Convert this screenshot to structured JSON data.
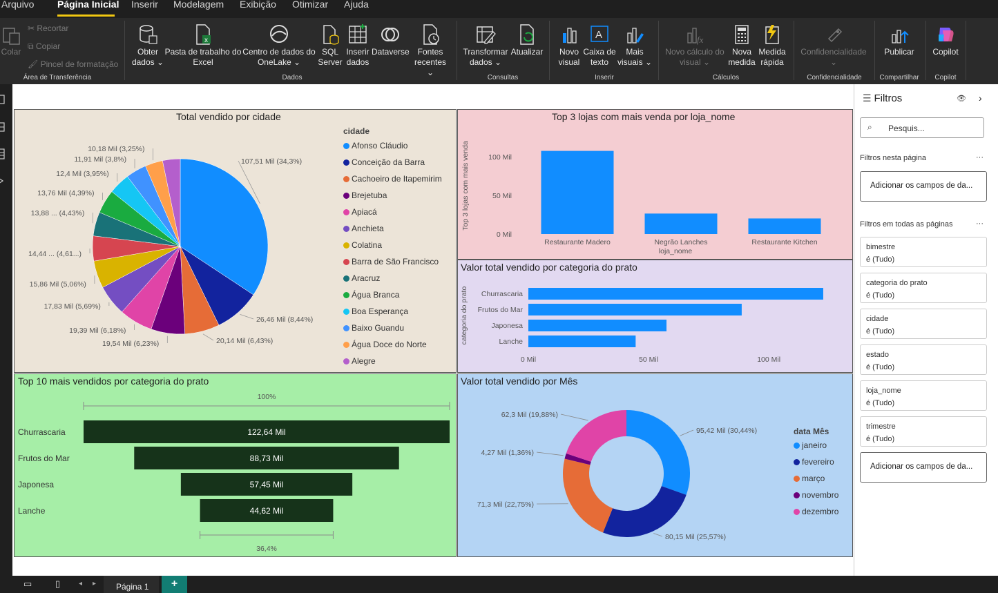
{
  "menu": {
    "items": [
      "Arquivo",
      "Página Inicial",
      "Inserir",
      "Modelagem",
      "Exibição",
      "Otimizar",
      "Ajuda"
    ]
  },
  "ribbon": {
    "clipboard": {
      "paste": "Colar",
      "cut": "Recortar",
      "copy": "Copiar",
      "format_painter": "Pincel de formatação",
      "group": "Área de Transferência"
    },
    "data": {
      "get_data": [
        "Obter",
        "dados"
      ],
      "excel": [
        "Pasta de trabalho do",
        "Excel"
      ],
      "onelake": [
        "Centro de dados do",
        "OneLake"
      ],
      "sql": [
        "SQL",
        "Server"
      ],
      "enter": [
        "Inserir",
        "dados"
      ],
      "dataverse": [
        "Dataverse",
        ""
      ],
      "recent": [
        "Fontes",
        "recentes"
      ],
      "group": "Dados"
    },
    "queries": {
      "transform": [
        "Transformar",
        "dados"
      ],
      "refresh": [
        "Atualizar",
        ""
      ],
      "group": "Consultas"
    },
    "insert": {
      "new_visual": [
        "Novo",
        "visual"
      ],
      "text_box": [
        "Caixa de",
        "texto"
      ],
      "more_visuals": [
        "Mais",
        "visuais"
      ],
      "group": "Inserir"
    },
    "calc": {
      "new_calc": [
        "Novo cálculo do",
        "visual"
      ],
      "new_measure": [
        "Nova",
        "medida"
      ],
      "quick_measure": [
        "Medida",
        "rápida"
      ],
      "group": "Cálculos"
    },
    "sensitivity": {
      "label": "Confidencialidade",
      "group": "Confidencialidade"
    },
    "share": {
      "publish": "Publicar",
      "group": "Compartilhar"
    },
    "copilot": {
      "label": "Copilot",
      "group": "Copilot"
    }
  },
  "colors": {
    "pie_bg": "#ece4d8",
    "bar_bg": "#f4cdd2",
    "hbar_bg": "#e2d9f1",
    "funnel_bg": "#a6eea7",
    "donut_bg": "#b4d4f4",
    "bar": "#118dff",
    "funnel_bar": "#16331a"
  },
  "pie": {
    "title": "Total vendido por cidade",
    "legend_title": "cidade",
    "slices": [
      {
        "city": "Afonso Cláudio",
        "value": 107.51,
        "color": "#118dff",
        "label": "107,51 Mil (34,3%)"
      },
      {
        "city": "Conceição da Barra",
        "value": 26.46,
        "color": "#12239e",
        "label": "26,46 Mil (8,44%)"
      },
      {
        "city": "Cachoeiro de Itapemirim",
        "value": 20.14,
        "color": "#e66c37",
        "label": "20,14 Mil (6,43%)"
      },
      {
        "city": "Brejetuba",
        "value": 19.54,
        "color": "#6b007b",
        "label": "19,54 Mil (6,23%)"
      },
      {
        "city": "Apiacá",
        "value": 19.39,
        "color": "#e044a7",
        "label": "19,39 Mil (6,18%)"
      },
      {
        "city": "Anchieta",
        "value": 17.83,
        "color": "#744ec2",
        "label": "17,83 Mil (5,69%)"
      },
      {
        "city": "Colatina",
        "value": 15.86,
        "color": "#d9b300",
        "label": "15,86 Mil (5,06%)"
      },
      {
        "city": "Barra de São Francisco",
        "value": 14.44,
        "color": "#d64550",
        "label": "14,44 ... (4,61...)"
      },
      {
        "city": "Aracruz",
        "value": 13.88,
        "color": "#197278",
        "label": "13,88 ... (4,43%)"
      },
      {
        "city": "Água Branca",
        "value": 13.76,
        "color": "#1aab40",
        "label": "13,76 Mil (4,39%)"
      },
      {
        "city": "Boa Esperança",
        "value": 12.4,
        "color": "#15c6f4",
        "label": "12,4 Mil (3,95%)"
      },
      {
        "city": "Baixo Guandu",
        "value": 11.91,
        "color": "#4092ff",
        "label": "11,91 Mil (3,8%)"
      },
      {
        "city": "Água Doce do Norte",
        "value": 10.18,
        "color": "#ff9f4a",
        "label": "10,18 Mil (3,25%)"
      },
      {
        "city": "Alegre",
        "value": 10.18,
        "color": "#b45fcc",
        "label": ""
      }
    ]
  },
  "bar": {
    "title": "Top 3 lojas com mais venda por loja_nome",
    "ylabel": "Top 3 lojas com mais venda",
    "xlabel": "loja_nome",
    "ticks": [
      "0 Mil",
      "50 Mil",
      "100 Mil"
    ],
    "ymax": 125,
    "categories": [
      "Restaurante Madero",
      "Negrão Lanches",
      "Restaurante Kitchen"
    ],
    "values": [
      107.51,
      26.46,
      20.14
    ]
  },
  "hbar": {
    "title": "Valor total vendido por categoria do prato",
    "ylabel": "categoria do prato",
    "ticks": [
      "0 Mil",
      "50 Mil",
      "100 Mil"
    ],
    "xmax": 135,
    "categories": [
      "Churrascaria",
      "Frutos do Mar",
      "Japonesa",
      "Lanche"
    ],
    "values": [
      122.64,
      88.73,
      57.45,
      44.62
    ]
  },
  "funnel": {
    "title": "Top 10 mais vendidos por categoria do prato",
    "top_pct": "100%",
    "bottom_pct": "36,4%",
    "categories": [
      "Churrascaria",
      "Frutos do Mar",
      "Japonesa",
      "Lanche"
    ],
    "values": [
      122.64,
      88.73,
      57.45,
      44.62
    ],
    "labels": [
      "122,64 Mil",
      "88,73 Mil",
      "57,45 Mil",
      "44,62 Mil"
    ]
  },
  "donut": {
    "title": "Valor total vendido por Mês",
    "legend_title": "data Mês",
    "slices": [
      {
        "month": "janeiro",
        "value": 95.42,
        "color": "#118dff",
        "label": "95,42 Mil (30,44%)"
      },
      {
        "month": "fevereiro",
        "value": 80.15,
        "color": "#12239e",
        "label": "80,15 Mil (25,57%)"
      },
      {
        "month": "março",
        "value": 71.3,
        "color": "#e66c37",
        "label": "71,3 Mil (22,75%)"
      },
      {
        "month": "novembro",
        "value": 4.27,
        "color": "#6b007b",
        "label": "4,27 Mil (1,36%)"
      },
      {
        "month": "dezembro",
        "value": 62.3,
        "color": "#e044a7",
        "label": "62,3 Mil (19,88%)"
      }
    ]
  },
  "filters": {
    "title": "Filtros",
    "search": "Pesquis...",
    "this_page": "Filtros nesta página",
    "add": "Adicionar os campos de da...",
    "all_pages": "Filtros em todas as páginas",
    "items": [
      {
        "name": "bimestre",
        "value": "é (Tudo)"
      },
      {
        "name": "categoria do prato",
        "value": "é (Tudo)"
      },
      {
        "name": "cidade",
        "value": "é (Tudo)"
      },
      {
        "name": "estado",
        "value": "é (Tudo)"
      },
      {
        "name": "loja_nome",
        "value": "é (Tudo)"
      },
      {
        "name": "trimestre",
        "value": "é (Tudo)"
      }
    ]
  },
  "status": {
    "page_tab": "Página 1",
    "add": "+"
  }
}
